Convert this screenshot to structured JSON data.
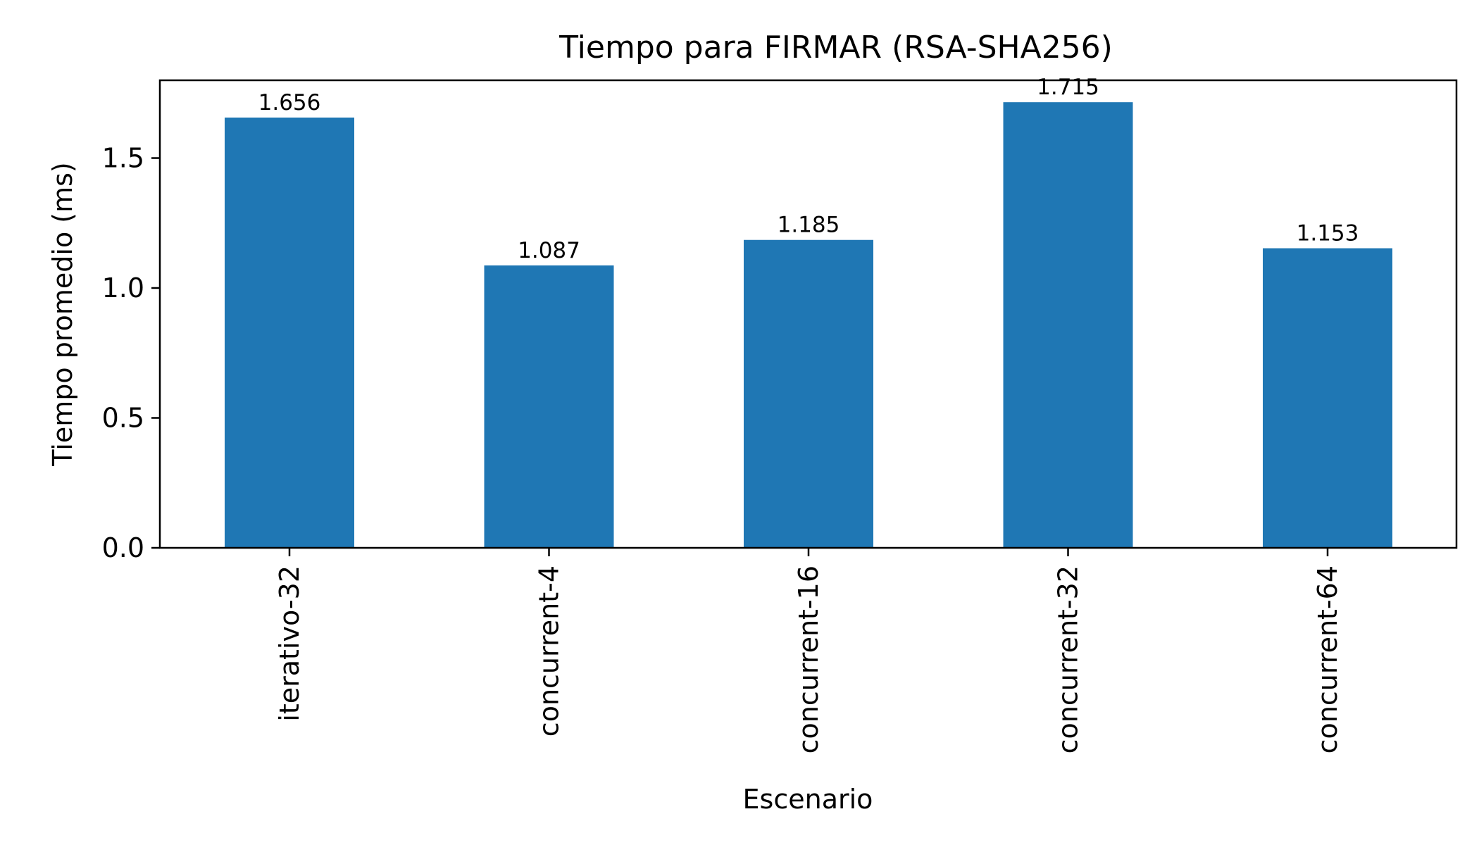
{
  "chart_data": {
    "type": "bar",
    "title": "Tiempo para FIRMAR (RSA-SHA256)",
    "xlabel": "Escenario",
    "ylabel": "Tiempo promedio (ms)",
    "categories": [
      "iterativo-32",
      "concurrent-4",
      "concurrent-16",
      "concurrent-32",
      "concurrent-64"
    ],
    "values": [
      1.656,
      1.087,
      1.185,
      1.715,
      1.153
    ],
    "value_labels": [
      "1.656",
      "1.087",
      "1.185",
      "1.715",
      "1.153"
    ],
    "ylim": [
      0,
      1.8
    ],
    "yticks": [
      0.0,
      0.5,
      1.0,
      1.5
    ],
    "ytick_labels": [
      "0.0",
      "0.5",
      "1.0",
      "1.5"
    ],
    "grid": false,
    "legend": "none",
    "bar_color": "#1f77b4"
  }
}
